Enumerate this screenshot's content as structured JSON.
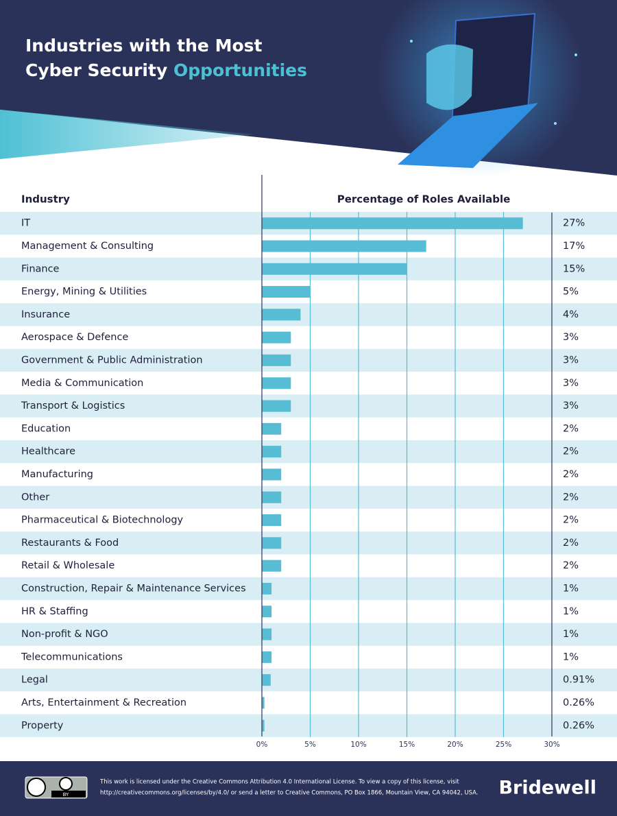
{
  "chart_data": {
    "type": "bar",
    "orientation": "horizontal",
    "title_line1": "Industries with the Most",
    "title_line2": "Cyber Security",
    "title_highlight": "Opportunities",
    "column_header": "Industry",
    "x_label": "Percentage of Roles Available",
    "categories": [
      "IT",
      "Management & Consulting",
      "Finance",
      "Energy, Mining & Utilities",
      "Insurance",
      "Aerospace & Defence",
      "Government & Public Administration",
      "Media & Communication",
      "Transport & Logistics",
      "Education",
      "Healthcare",
      "Manufacturing",
      "Other",
      "Pharmaceutical & Biotechnology",
      "Restaurants & Food",
      "Retail & Wholesale",
      "Construction, Repair & Maintenance Services",
      "HR & Staffing",
      "Non-profit & NGO",
      "Telecommunications",
      "Legal",
      "Arts, Entertainment & Recreation",
      "Property"
    ],
    "values": [
      27,
      17,
      15,
      5,
      4,
      3,
      3,
      3,
      3,
      2,
      2,
      2,
      2,
      2,
      2,
      2,
      1,
      1,
      1,
      1,
      0.91,
      0.26,
      0.26
    ],
    "value_labels": [
      "27%",
      "17%",
      "15%",
      "5%",
      "4%",
      "3%",
      "3%",
      "3%",
      "3%",
      "2%",
      "2%",
      "2%",
      "2%",
      "2%",
      "2%",
      "2%",
      "1%",
      "1%",
      "1%",
      "1%",
      "0.91%",
      "0.26%",
      "0.26%"
    ],
    "color": "#56bdd4",
    "xlim": [
      0,
      30
    ],
    "xticks": [
      {
        "value": 0,
        "label": "0%"
      },
      {
        "value": 5,
        "label": "5%"
      },
      {
        "value": 10,
        "label": "10%"
      },
      {
        "value": 15,
        "label": "15%"
      },
      {
        "value": 20,
        "label": "20%"
      },
      {
        "value": 25,
        "label": "25%"
      },
      {
        "value": 30,
        "label": "30%"
      }
    ],
    "grid": true
  },
  "footer": {
    "badge": "BY",
    "license_line1": "This work is licensed under the Creative Commons Attribution 4.0 International License. To view a copy of this license, visit",
    "license_line2": "http://creativecommons.org/licenses/by/4.0/ or send a letter to Creative Commons, PO Box 1866, Mountain View, CA 94042, USA.",
    "brand": "Bridewell"
  }
}
